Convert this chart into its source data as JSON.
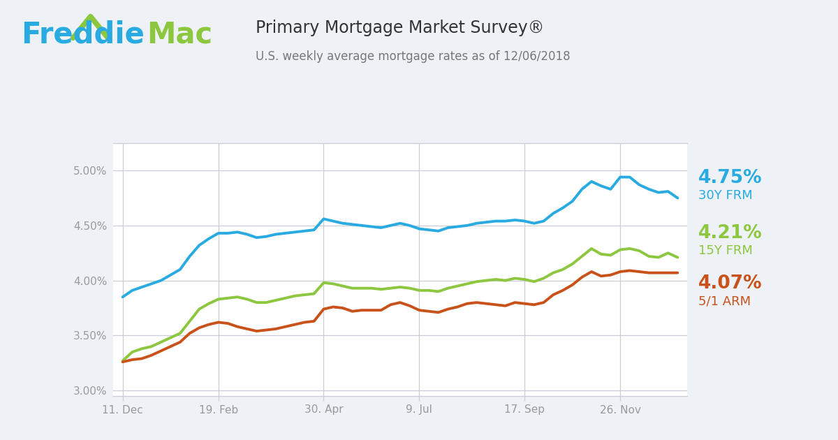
{
  "title": "Primary Mortgage Market Survey®",
  "subtitle": "U.S. weekly average mortgage rates as of 12/06/2018",
  "freddie_blue": "#29ABE2",
  "freddie_green": "#8DC63F",
  "line_blue": "#29ABE2",
  "line_green": "#8DC63F",
  "line_orange": "#C8521A",
  "bg_color": "#EEF2F7",
  "plot_bg": "#FFFFFF",
  "grid_color": "#C8CDD6",
  "tick_color": "#999999",
  "label_30y_rate": "4.75%",
  "label_30y_name": "30Y FRM",
  "label_15y_rate": "4.21%",
  "label_15y_name": "15Y FRM",
  "label_arm_rate": "4.07%",
  "label_arm_name": "5/1 ARM",
  "x_ticks_labels": [
    "11. Dec",
    "19. Feb",
    "30. Apr",
    "9. Jul",
    "17. Sep",
    "26. Nov"
  ],
  "x_tick_positions": [
    0,
    10,
    21,
    31,
    42,
    52
  ],
  "ylim": [
    2.95,
    5.25
  ],
  "yticks": [
    3.0,
    3.5,
    4.0,
    4.5,
    5.0
  ],
  "data_30y": [
    3.85,
    3.91,
    3.94,
    3.97,
    4.0,
    4.05,
    4.1,
    4.22,
    4.32,
    4.38,
    4.43,
    4.43,
    4.44,
    4.42,
    4.39,
    4.4,
    4.42,
    4.43,
    4.44,
    4.45,
    4.46,
    4.56,
    4.54,
    4.52,
    4.51,
    4.5,
    4.49,
    4.48,
    4.5,
    4.52,
    4.5,
    4.47,
    4.46,
    4.45,
    4.48,
    4.49,
    4.5,
    4.52,
    4.53,
    4.54,
    4.54,
    4.55,
    4.54,
    4.52,
    4.54,
    4.61,
    4.66,
    4.72,
    4.83,
    4.9,
    4.86,
    4.83,
    4.94,
    4.94,
    4.87,
    4.83,
    4.8,
    4.81,
    4.75
  ],
  "data_15y": [
    3.27,
    3.35,
    3.38,
    3.4,
    3.44,
    3.48,
    3.52,
    3.63,
    3.74,
    3.79,
    3.83,
    3.84,
    3.85,
    3.83,
    3.8,
    3.8,
    3.82,
    3.84,
    3.86,
    3.87,
    3.88,
    3.98,
    3.97,
    3.95,
    3.93,
    3.93,
    3.93,
    3.92,
    3.93,
    3.94,
    3.93,
    3.91,
    3.91,
    3.9,
    3.93,
    3.95,
    3.97,
    3.99,
    4.0,
    4.01,
    4.0,
    4.02,
    4.01,
    3.99,
    4.02,
    4.07,
    4.1,
    4.15,
    4.22,
    4.29,
    4.24,
    4.23,
    4.28,
    4.29,
    4.27,
    4.22,
    4.21,
    4.25,
    4.21
  ],
  "data_arm": [
    3.26,
    3.28,
    3.29,
    3.32,
    3.36,
    3.4,
    3.44,
    3.52,
    3.57,
    3.6,
    3.62,
    3.61,
    3.58,
    3.56,
    3.54,
    3.55,
    3.56,
    3.58,
    3.6,
    3.62,
    3.63,
    3.74,
    3.76,
    3.75,
    3.72,
    3.73,
    3.73,
    3.73,
    3.78,
    3.8,
    3.77,
    3.73,
    3.72,
    3.71,
    3.74,
    3.76,
    3.79,
    3.8,
    3.79,
    3.78,
    3.77,
    3.8,
    3.79,
    3.78,
    3.8,
    3.87,
    3.91,
    3.96,
    4.03,
    4.08,
    4.04,
    4.05,
    4.08,
    4.09,
    4.08,
    4.07,
    4.07,
    4.07,
    4.07
  ]
}
